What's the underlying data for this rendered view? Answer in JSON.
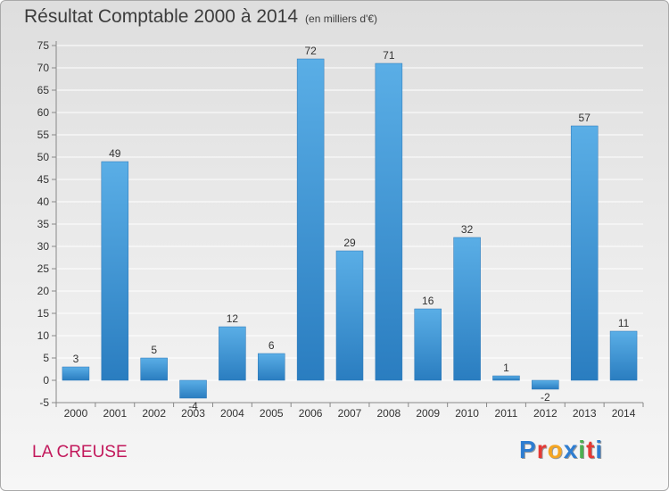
{
  "title": "Résultat Comptable 2000 à 2014",
  "subtitle": "(en milliers d'€)",
  "location_label": "LA CREUSE",
  "logo": {
    "text": "Proxiti",
    "letters": [
      "P",
      "r",
      "o",
      "x",
      "i",
      "t",
      "i"
    ],
    "colors": [
      "#2e7dd1",
      "#e53935",
      "#f5a623",
      "#2e7dd1",
      "#4caf50",
      "#e53935",
      "#2e7dd1"
    ]
  },
  "colors": {
    "bar_top": "#5aaee6",
    "bar_bottom": "#2a7dc0",
    "grid": "#ffffff",
    "text": "#333333"
  },
  "chart_data": {
    "type": "bar",
    "title": "Résultat Comptable 2000 à 2014",
    "subtitle": "(en milliers d'€)",
    "xlabel": "",
    "ylabel": "",
    "categories": [
      "2000",
      "2001",
      "2002",
      "2003",
      "2004",
      "2005",
      "2006",
      "2007",
      "2008",
      "2009",
      "2010",
      "2011",
      "2012",
      "2013",
      "2014"
    ],
    "values": [
      3,
      49,
      5,
      -4,
      12,
      6,
      72,
      29,
      71,
      16,
      32,
      1,
      -2,
      57,
      11
    ],
    "ylim": [
      -5,
      75
    ],
    "yticks": [
      -5,
      0,
      5,
      10,
      15,
      20,
      25,
      30,
      35,
      40,
      45,
      50,
      55,
      60,
      65,
      70,
      75
    ],
    "grid": true,
    "legend": "none"
  }
}
